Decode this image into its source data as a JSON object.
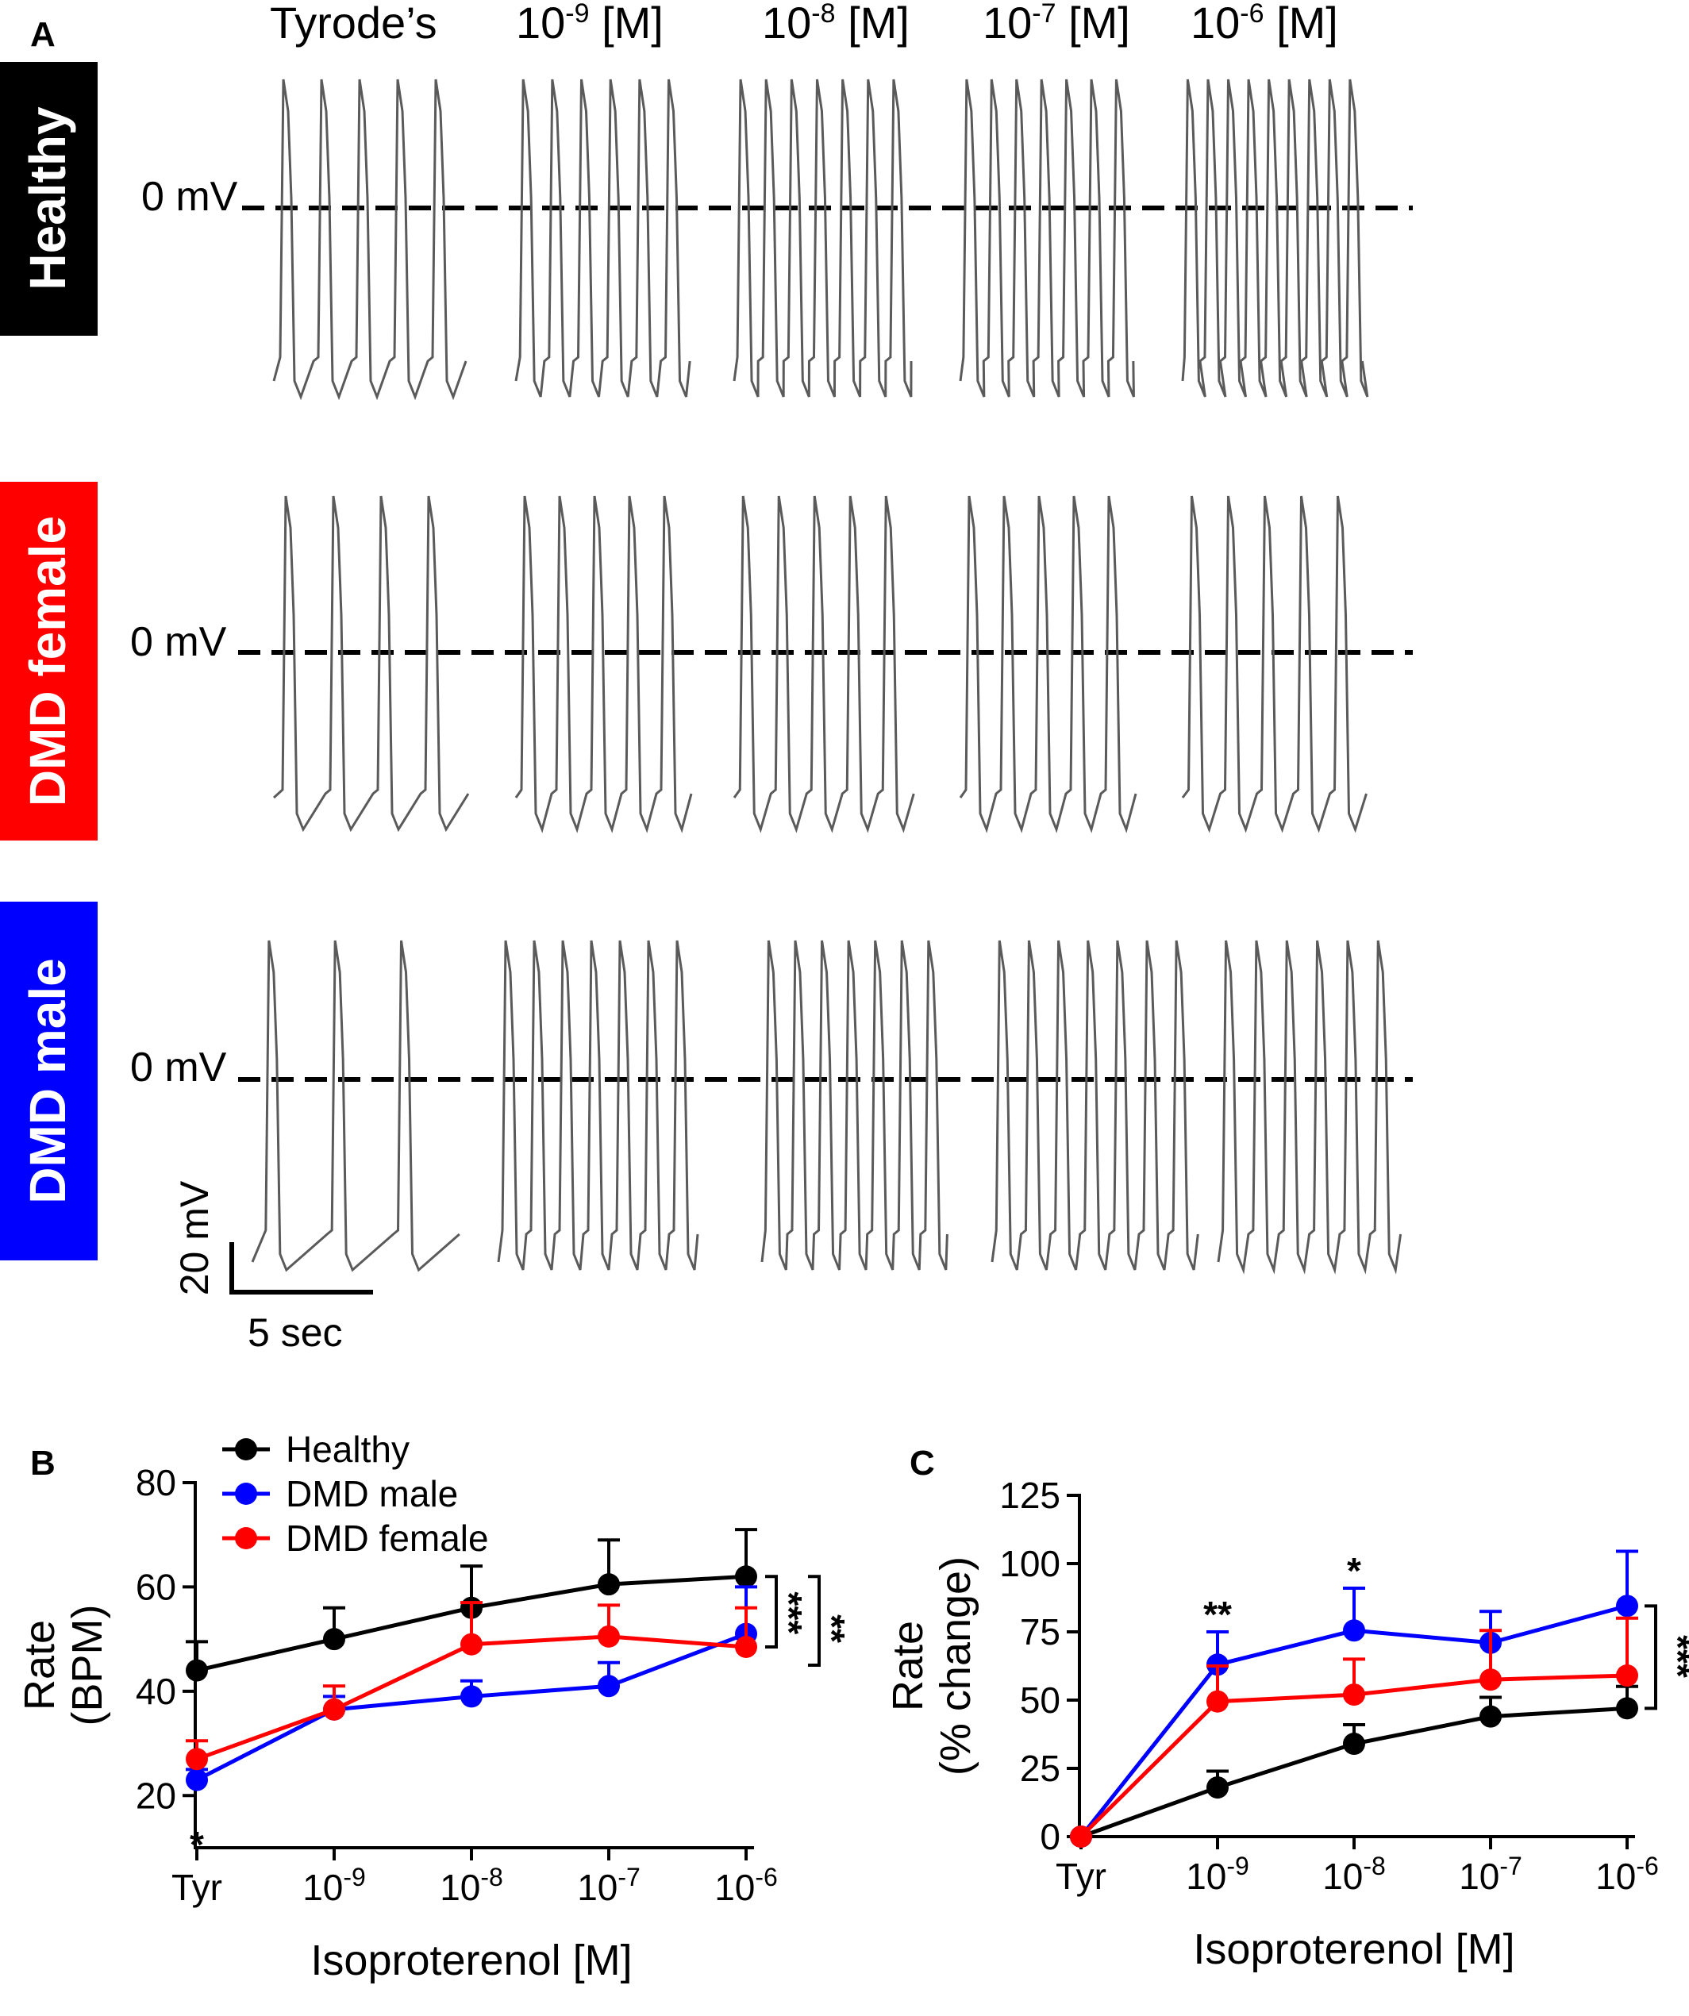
{
  "panel_a": {
    "letter": "A",
    "columns": [
      "Tyrode’s",
      "10",
      "10",
      "10",
      "10"
    ],
    "column_exponents": [
      "",
      "-9",
      "-8",
      "-7",
      "-6"
    ],
    "column_units": [
      "",
      " [M]",
      " [M]",
      " [M]",
      " [M]"
    ],
    "rows": [
      {
        "label": "Healthy",
        "color": "#000000",
        "baseline_label": "0 mV",
        "beats_per_segment": [
          5,
          6,
          7,
          7,
          9
        ]
      },
      {
        "label": "DMD female",
        "color": "#ff0000",
        "baseline_label": "0 mV",
        "beats_per_segment": [
          4,
          5,
          5,
          5,
          5
        ]
      },
      {
        "label": "DMD male",
        "color": "#0000ff",
        "baseline_label": "0 mV",
        "beats_per_segment": [
          3,
          7,
          7,
          7,
          6
        ]
      }
    ],
    "scale_bar": {
      "voltage": "20 mV",
      "time": "5 sec"
    }
  },
  "chart_data": [
    {
      "panel": "B",
      "type": "line",
      "x": [
        "Tyr",
        "10",
        "10",
        "10",
        "10"
      ],
      "x_exponents": [
        "",
        "-9",
        "-8",
        "-7",
        "-6"
      ],
      "xlabel": "Isoproterenol [M]",
      "ylabel": [
        "Rate",
        "(BPM)"
      ],
      "ylim": [
        10,
        80
      ],
      "yticks": [
        20,
        40,
        60,
        80
      ],
      "legend_position": "top-left",
      "series": [
        {
          "name": "Healthy",
          "color": "#000000",
          "values": [
            44,
            50,
            56,
            60.5,
            62
          ],
          "errors": [
            5.5,
            6,
            8,
            8.5,
            9
          ]
        },
        {
          "name": "DMD male",
          "color": "#0000ff",
          "values": [
            23,
            36.5,
            39,
            41,
            51
          ],
          "errors": [
            2,
            2.5,
            3,
            4.5,
            9
          ]
        },
        {
          "name": "DMD female",
          "color": "#ff0000",
          "values": [
            27,
            36.5,
            49,
            50.5,
            48.5
          ],
          "errors": [
            3.5,
            4.5,
            8,
            6,
            7.5
          ]
        }
      ],
      "annotations": [
        {
          "text": "*",
          "x": "Tyr",
          "y": 20
        },
        {
          "text": "***",
          "between": [
            "Healthy",
            "DMD female"
          ],
          "at": "10-6"
        },
        {
          "text": "**",
          "between": [
            "Healthy",
            "DMD male"
          ],
          "at": "10-6"
        }
      ]
    },
    {
      "panel": "C",
      "type": "line",
      "x": [
        "Tyr",
        "10",
        "10",
        "10",
        "10"
      ],
      "x_exponents": [
        "",
        "-9",
        "-8",
        "-7",
        "-6"
      ],
      "xlabel": "Isoproterenol [M]",
      "ylabel": [
        "Rate",
        "(% change)"
      ],
      "ylim": [
        0,
        125
      ],
      "yticks": [
        0,
        25,
        50,
        75,
        100,
        125
      ],
      "series": [
        {
          "name": "Healthy",
          "color": "#000000",
          "values": [
            0,
            18,
            34,
            44,
            47
          ],
          "errors": [
            0,
            6,
            7,
            7,
            8
          ]
        },
        {
          "name": "DMD male",
          "color": "#0000ff",
          "values": [
            0,
            63,
            75.5,
            71,
            84.5
          ],
          "errors": [
            0,
            12,
            15.5,
            11.5,
            20
          ]
        },
        {
          "name": "DMD female",
          "color": "#ff0000",
          "values": [
            0,
            49.5,
            52,
            57.5,
            59
          ],
          "errors": [
            0,
            13,
            13,
            18,
            21
          ]
        }
      ],
      "annotations": [
        {
          "text": "**",
          "x": "10-9",
          "y": 79
        },
        {
          "text": "*",
          "x": "10-8",
          "y": 95
        },
        {
          "text": "***",
          "between": [
            "DMD male",
            "Healthy"
          ],
          "at": "10-6"
        }
      ]
    }
  ]
}
